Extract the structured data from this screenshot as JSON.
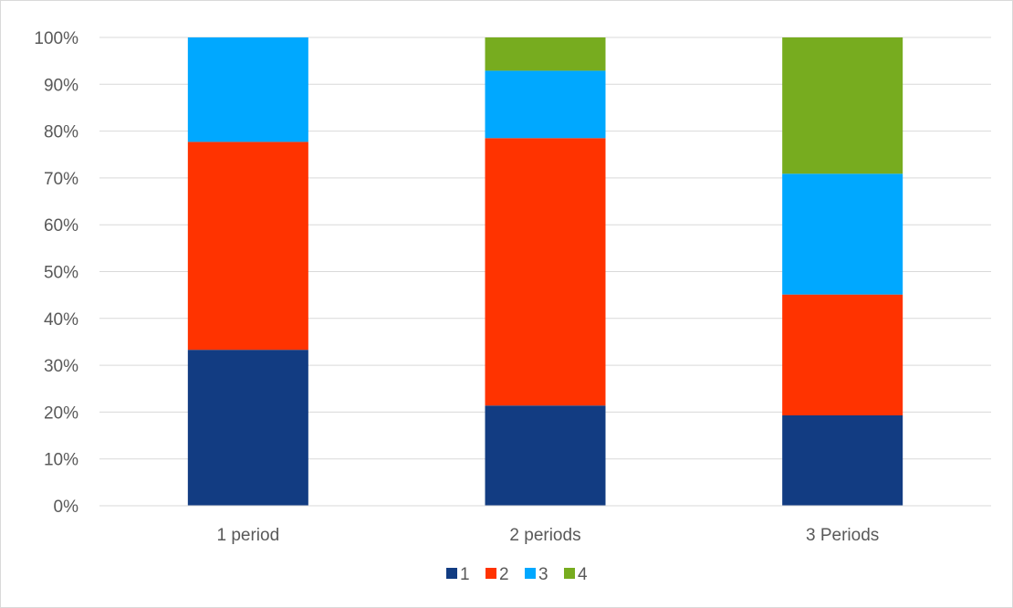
{
  "chart_data": {
    "type": "bar",
    "stacked": true,
    "percent_stacked": true,
    "title": "",
    "xlabel": "",
    "ylabel": "",
    "categories": [
      "1 period",
      "2 periods",
      "3 Periods"
    ],
    "series": [
      {
        "name": "1",
        "color": "#123c82",
        "values": [
          33.3,
          21.4,
          19.3
        ]
      },
      {
        "name": "2",
        "color": "#ff3300",
        "values": [
          44.4,
          57.1,
          25.8
        ]
      },
      {
        "name": "3",
        "color": "#00a8ff",
        "values": [
          22.3,
          14.4,
          25.8
        ]
      },
      {
        "name": "4",
        "color": "#77ac1f",
        "values": [
          0.0,
          7.1,
          29.1
        ]
      }
    ],
    "ylim": [
      0,
      100
    ],
    "y_ticks": [
      "0%",
      "10%",
      "20%",
      "30%",
      "40%",
      "50%",
      "60%",
      "70%",
      "80%",
      "90%",
      "100%"
    ],
    "y_tick_values": [
      0,
      10,
      20,
      30,
      40,
      50,
      60,
      70,
      80,
      90,
      100
    ],
    "grid": true,
    "legend_position": "bottom"
  }
}
